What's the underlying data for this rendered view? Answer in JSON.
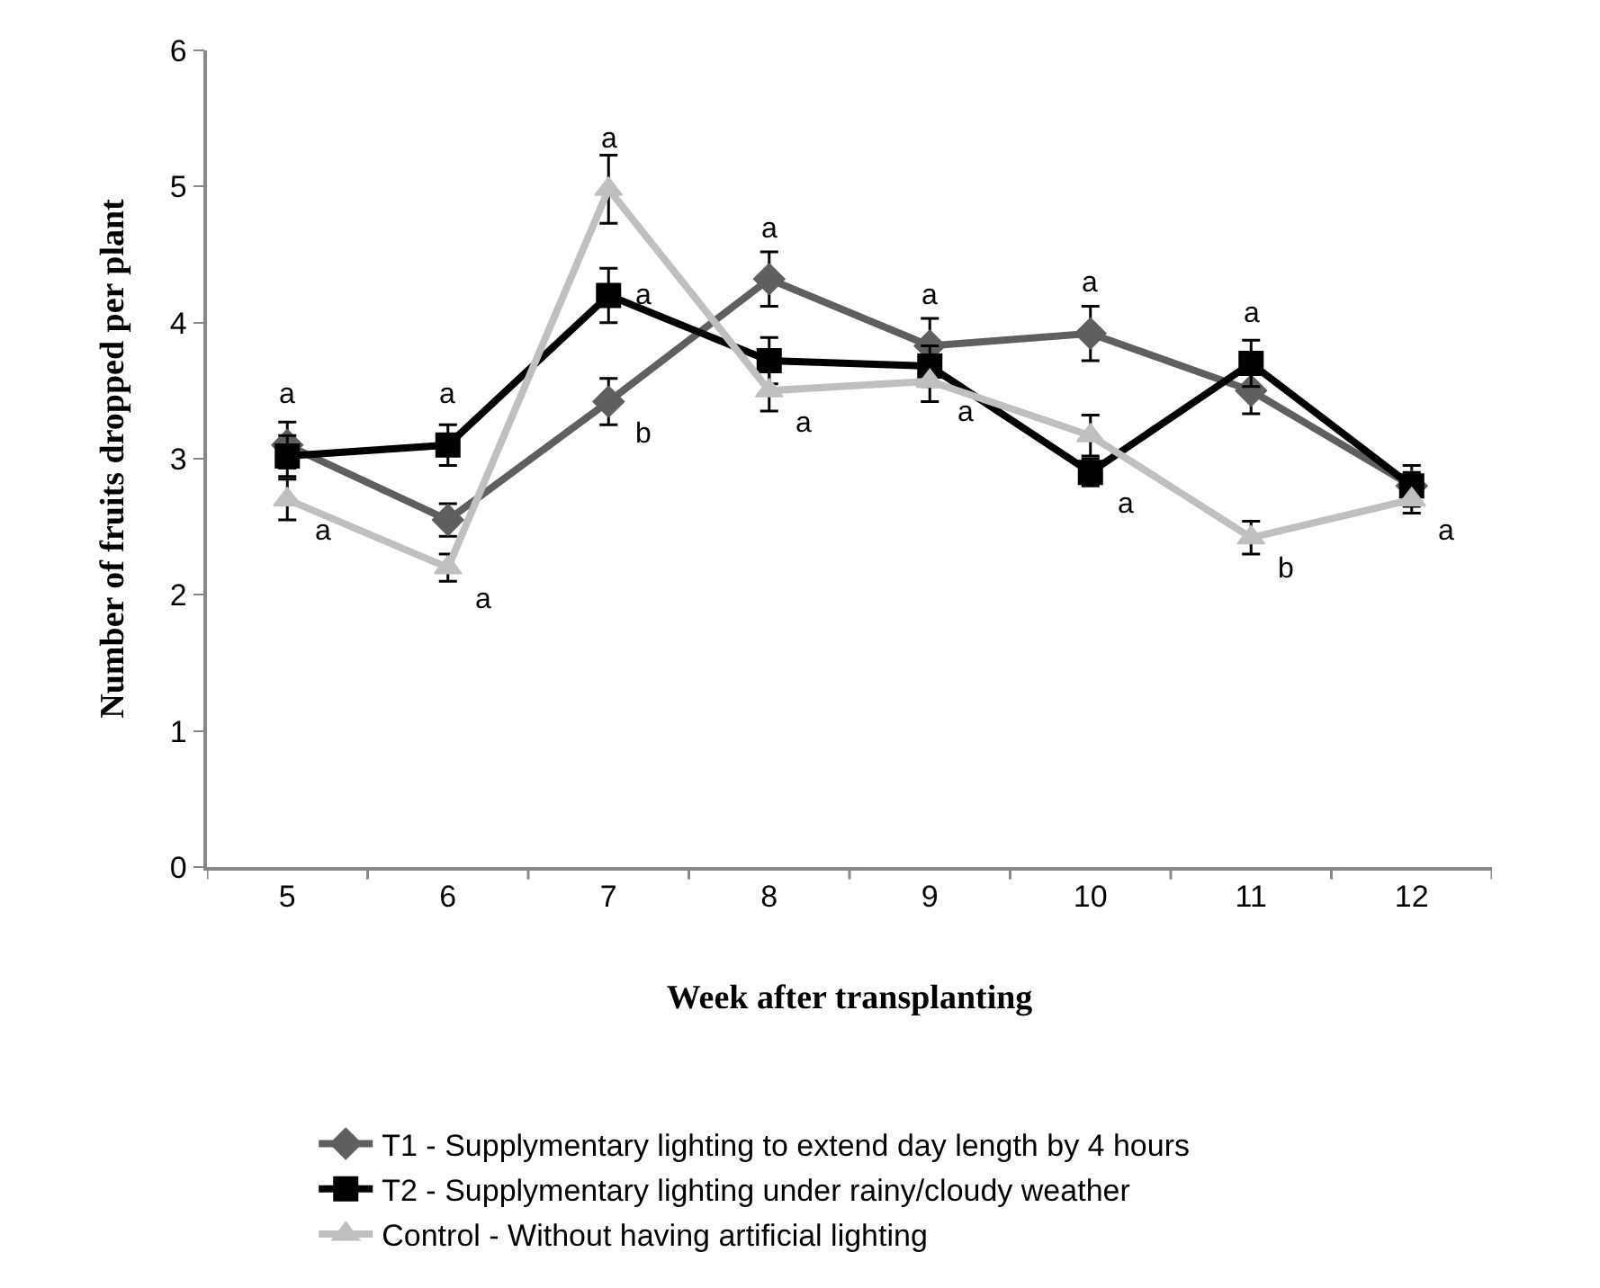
{
  "chart_data": {
    "type": "line",
    "xlabel": "Week after transplanting",
    "ylabel": "Number of fruits dropped per plant",
    "categories": [
      "5",
      "6",
      "7",
      "8",
      "9",
      "10",
      "11",
      "12"
    ],
    "ylim": [
      0,
      6
    ],
    "yticks": [
      0,
      1,
      2,
      3,
      4,
      5,
      6
    ],
    "grid": false,
    "legend": "bottom",
    "series": [
      {
        "name": "T1 - Supplymentary lighting to extend day length by 4 hours",
        "color": "#5f5f5f",
        "marker": "diamond",
        "values": [
          3.1,
          2.55,
          3.42,
          4.32,
          3.83,
          3.92,
          3.5,
          2.8
        ],
        "errors": [
          0.17,
          0.12,
          0.17,
          0.2,
          0.2,
          0.2,
          0.17,
          0.15
        ]
      },
      {
        "name": "T2 - Supplymentary lighting under rainy/cloudy weather",
        "color": "#000000",
        "marker": "square",
        "values": [
          3.02,
          3.1,
          4.2,
          3.72,
          3.68,
          2.9,
          3.7,
          2.8
        ],
        "errors": [
          0.15,
          0.15,
          0.2,
          0.17,
          0.15,
          0.1,
          0.17,
          0.1
        ]
      },
      {
        "name": "Control - Without having artificial lighting",
        "color": "#bfbfbf",
        "marker": "triangle",
        "values": [
          2.7,
          2.2,
          4.98,
          3.5,
          3.57,
          3.17,
          2.42,
          2.7
        ],
        "errors": [
          0.15,
          0.1,
          0.25,
          0.15,
          0.15,
          0.15,
          0.12,
          0.1
        ]
      }
    ],
    "annotations": [
      {
        "text": "a",
        "x": "5",
        "y": 3.1
      },
      {
        "text": "a",
        "x": "5",
        "y": 2.7
      },
      {
        "text": "a",
        "x": "6",
        "y": 3.1
      },
      {
        "text": "a",
        "x": "6",
        "y": 2.2
      },
      {
        "text": "a",
        "x": "7",
        "y": 4.98
      },
      {
        "text": "a",
        "x": "7",
        "y": 4.2
      },
      {
        "text": "b",
        "x": "7",
        "y": 3.42
      },
      {
        "text": "a",
        "x": "8",
        "y": 4.32
      },
      {
        "text": "a",
        "x": "8",
        "y": 3.5
      },
      {
        "text": "a",
        "x": "9",
        "y": 3.83
      },
      {
        "text": "a",
        "x": "9",
        "y": 3.57
      },
      {
        "text": "a",
        "x": "10",
        "y": 3.92
      },
      {
        "text": "a",
        "x": "10",
        "y": 2.9
      },
      {
        "text": "a",
        "x": "11",
        "y": 3.7
      },
      {
        "text": "b",
        "x": "11",
        "y": 2.42
      },
      {
        "text": "a",
        "x": "12",
        "y": 2.7
      }
    ]
  }
}
